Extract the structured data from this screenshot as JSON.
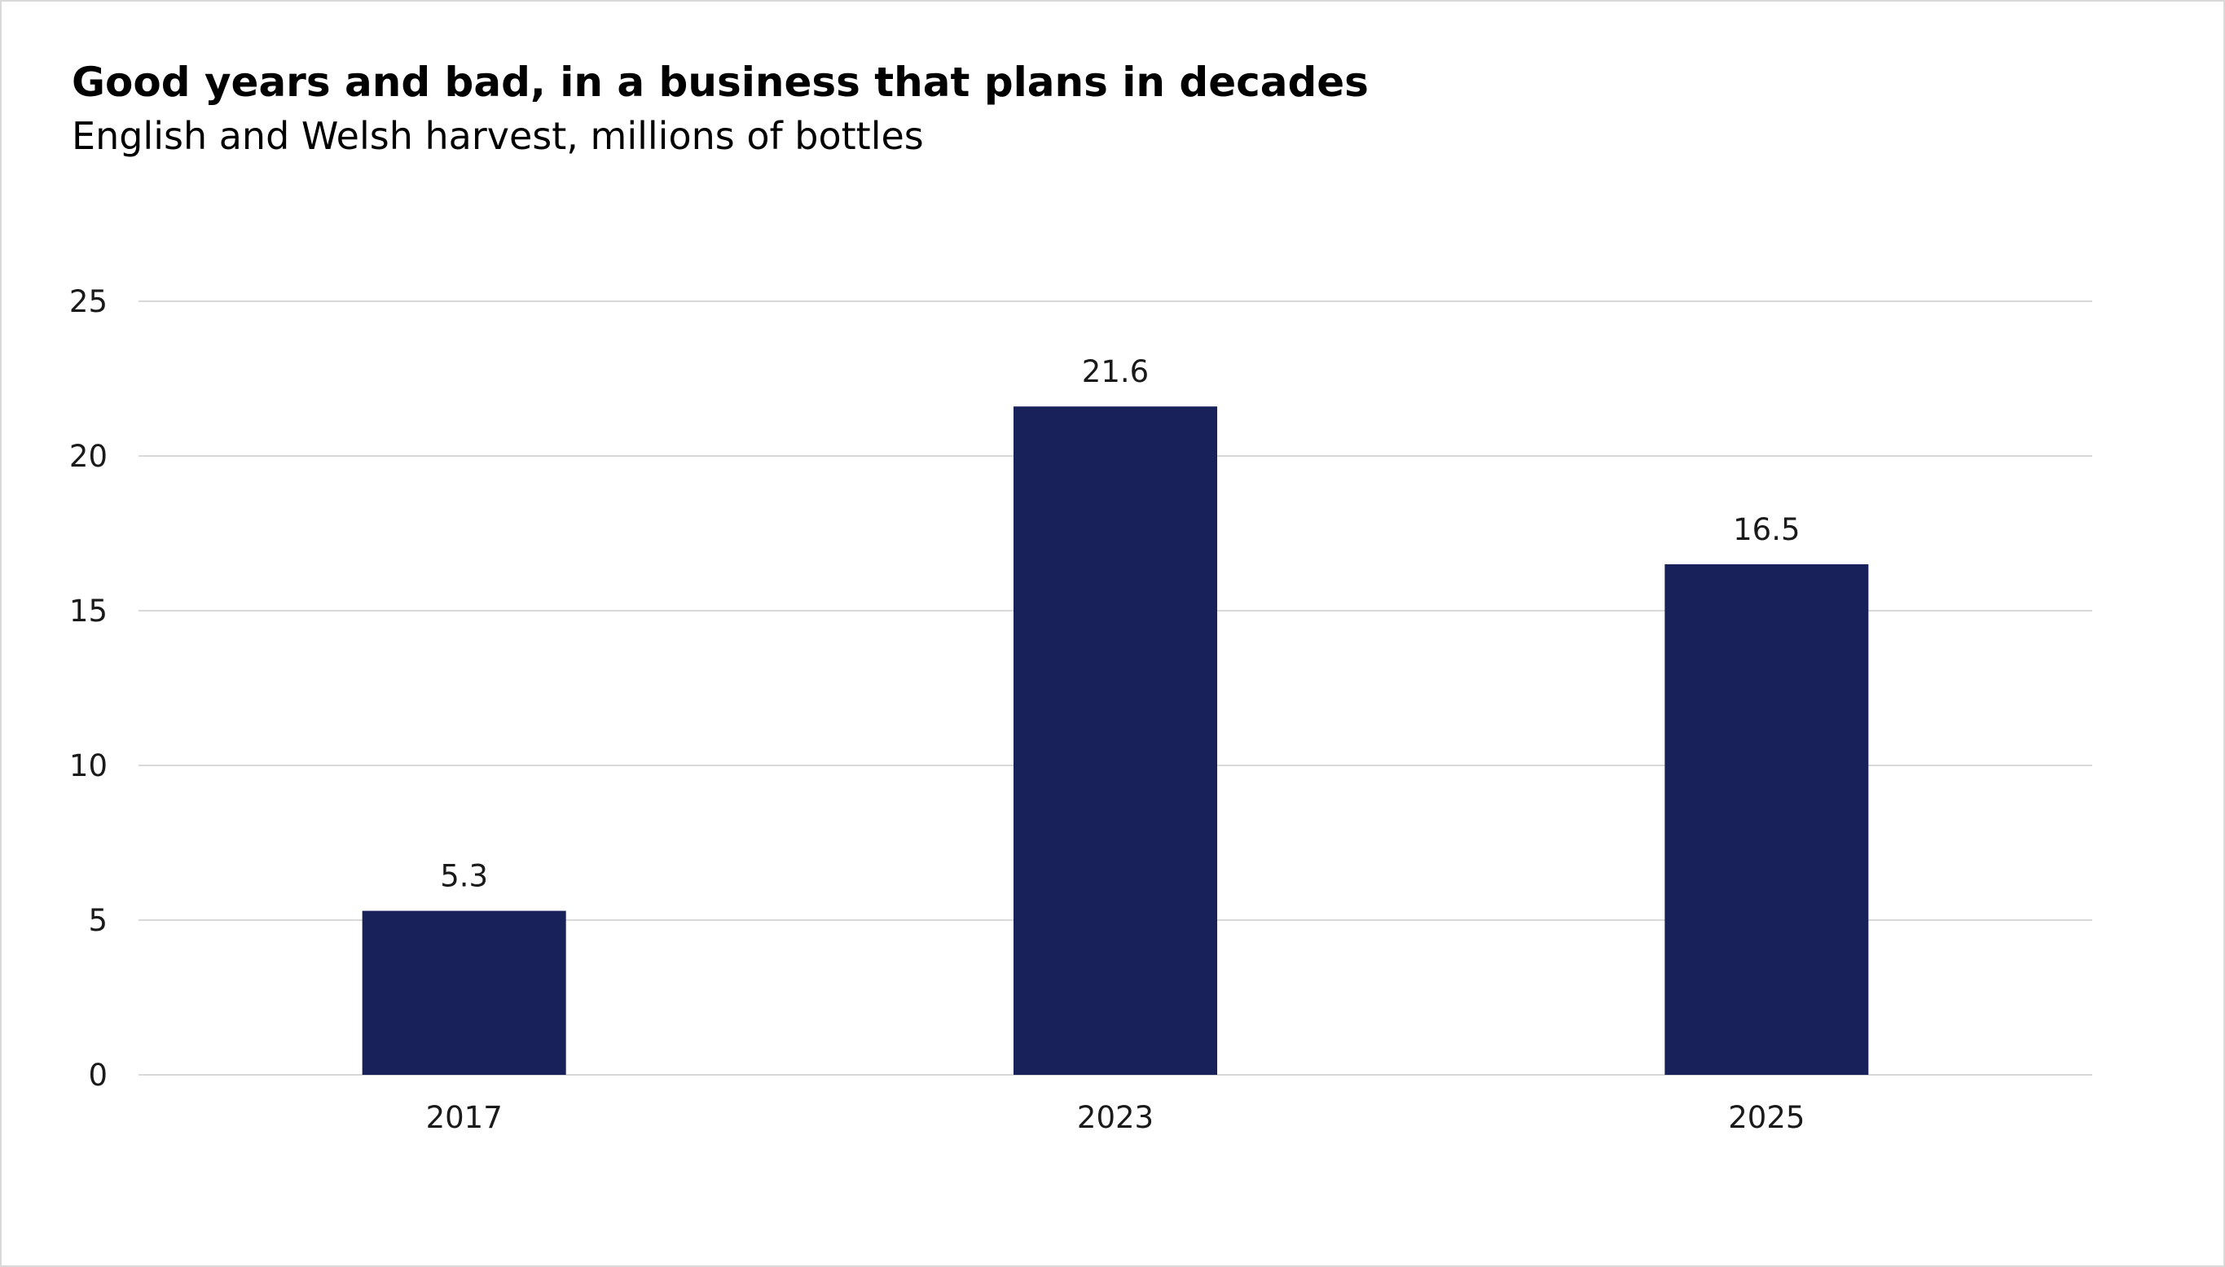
{
  "chart_data": {
    "type": "bar",
    "title": "Good years and bad, in a business that plans in decades",
    "subtitle": "English and Welsh harvest, millions of bottles",
    "categories": [
      "2017",
      "2023",
      "2025"
    ],
    "values": [
      5.3,
      21.6,
      16.5
    ],
    "data_labels": [
      "5.3",
      "21.6",
      "16.5"
    ],
    "yticks": [
      "0",
      "5",
      "10",
      "15",
      "20",
      "25"
    ],
    "ylim": [
      0,
      25
    ],
    "xlabel": "",
    "ylabel": "",
    "grid": true,
    "bar_color": "#18215a",
    "grid_color": "#d9d9d9"
  }
}
